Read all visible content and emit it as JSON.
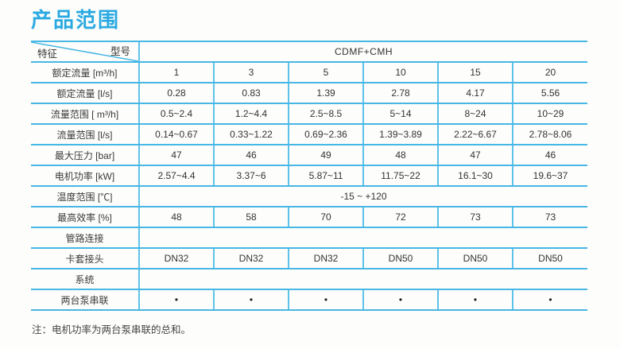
{
  "page": {
    "title": "产品范围",
    "note": "注：电机功率为两台泵串联的总和。"
  },
  "colors": {
    "accent": "#29a9e1",
    "border_horizontal": "#47b7e5",
    "border_vertical": "#5ec2ea",
    "text": "#333333"
  },
  "table": {
    "corner_top_right": "型号",
    "corner_bottom_left": "特征",
    "model_header": "CDMF+CMH",
    "rows": [
      {
        "type": "cells",
        "label": "额定流量 [m³/h]",
        "values": [
          "1",
          "3",
          "5",
          "10",
          "15",
          "20"
        ]
      },
      {
        "type": "cells",
        "label": "额定流量 [l/s]",
        "values": [
          "0.28",
          "0.83",
          "1.39",
          "2.78",
          "4.17",
          "5.56"
        ]
      },
      {
        "type": "cells",
        "label": "流量范围 [ m³/h]",
        "values": [
          "0.5~2.4",
          "1.2~4.4",
          "2.5~8.5",
          "5~14",
          "8~24",
          "10~29"
        ]
      },
      {
        "type": "cells",
        "label": "流量范围 [l/s]",
        "values": [
          "0.14~0.67",
          "0.33~1.22",
          "0.69~2.36",
          "1.39~3.89",
          "2.22~6.67",
          "2.78~8.06"
        ]
      },
      {
        "type": "cells",
        "label": "最大压力 [bar]",
        "values": [
          "47",
          "46",
          "49",
          "48",
          "47",
          "46"
        ]
      },
      {
        "type": "cells",
        "label": "电机功率 [kW]",
        "values": [
          "2.57~4.4",
          "3.37~6",
          "5.87~11",
          "11.75~22",
          "16.1~30",
          "19.6~37"
        ]
      },
      {
        "type": "merged",
        "label": "温度范围 [℃]",
        "value": "-15 ~ +120"
      },
      {
        "type": "cells",
        "label": "最高效率 [%]",
        "values": [
          "48",
          "58",
          "70",
          "72",
          "73",
          "73"
        ]
      },
      {
        "type": "merged",
        "label": "管路连接",
        "value": ""
      },
      {
        "type": "cells",
        "label": "卡套接头",
        "values": [
          "DN32",
          "DN32",
          "DN32",
          "DN50",
          "DN50",
          "DN50"
        ]
      },
      {
        "type": "merged",
        "label": "系统",
        "value": ""
      },
      {
        "type": "bullets",
        "label": "两台泵串联",
        "values": [
          "•",
          "•",
          "•",
          "•",
          "•",
          "•"
        ]
      }
    ]
  }
}
